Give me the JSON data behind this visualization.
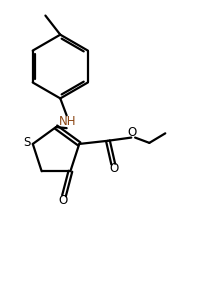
{
  "background_color": "#ffffff",
  "line_color": "#000000",
  "bond_lw": 1.6,
  "font_size": 8.5,
  "figsize": [
    2.14,
    2.86
  ],
  "dpi": 100,
  "xlim": [
    0,
    10
  ],
  "ylim": [
    0,
    13.4
  ]
}
